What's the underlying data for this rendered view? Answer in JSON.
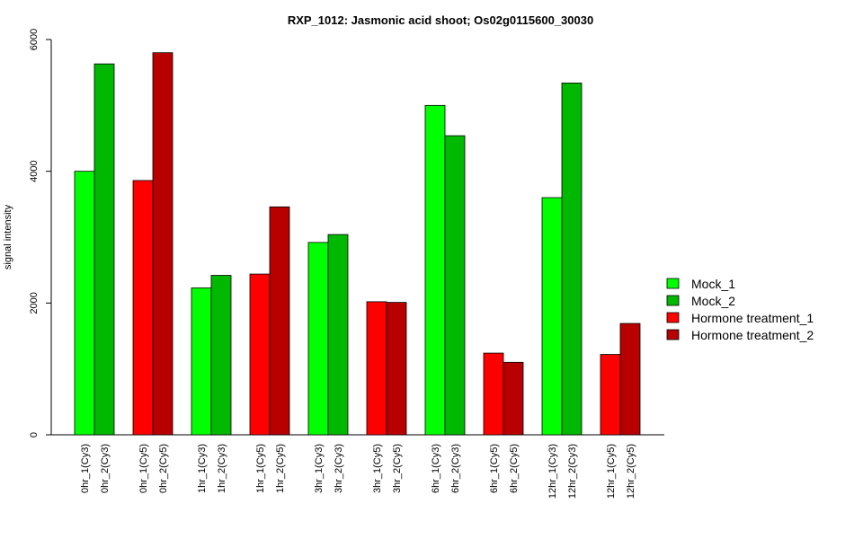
{
  "chart_data": {
    "type": "bar",
    "title": "RXP_1012: Jasmonic acid shoot; Os02g0115600_30030",
    "xlabel": "",
    "ylabel": "signal intensity",
    "ylim": [
      0,
      6000
    ],
    "yticks": [
      0,
      2000,
      4000,
      6000
    ],
    "legend_position": "right",
    "legend": [
      {
        "name": "Mock_1",
        "color": "#00FF00"
      },
      {
        "name": "Mock_2",
        "color": "#00B800"
      },
      {
        "name": "Hormone treatment_1",
        "color": "#FF0000"
      },
      {
        "name": "Hormone treatment_2",
        "color": "#B80000"
      }
    ],
    "groups": [
      {
        "bars": [
          {
            "label": "0hr_1(Cy3)",
            "value": 4000,
            "series": 0
          },
          {
            "label": "0hr_2(Cy3)",
            "value": 5630,
            "series": 1
          }
        ]
      },
      {
        "bars": [
          {
            "label": "0hr_1(Cy5)",
            "value": 3860,
            "series": 2
          },
          {
            "label": "0hr_2(Cy5)",
            "value": 5800,
            "series": 3
          }
        ]
      },
      {
        "bars": [
          {
            "label": "1hr_1(Cy3)",
            "value": 2230,
            "series": 0
          },
          {
            "label": "1hr_2(Cy3)",
            "value": 2420,
            "series": 1
          }
        ]
      },
      {
        "bars": [
          {
            "label": "1hr_1(Cy5)",
            "value": 2440,
            "series": 2
          },
          {
            "label": "1hr_2(Cy5)",
            "value": 3460,
            "series": 3
          }
        ]
      },
      {
        "bars": [
          {
            "label": "3hr_1(Cy3)",
            "value": 2920,
            "series": 0
          },
          {
            "label": "3hr_2(Cy3)",
            "value": 3040,
            "series": 1
          }
        ]
      },
      {
        "bars": [
          {
            "label": "3hr_1(Cy5)",
            "value": 2020,
            "series": 2
          },
          {
            "label": "3hr_2(Cy5)",
            "value": 2010,
            "series": 3
          }
        ]
      },
      {
        "bars": [
          {
            "label": "6hr_1(Cy3)",
            "value": 5000,
            "series": 0
          },
          {
            "label": "6hr_2(Cy3)",
            "value": 4540,
            "series": 1
          }
        ]
      },
      {
        "bars": [
          {
            "label": "6hr_1(Cy5)",
            "value": 1240,
            "series": 2
          },
          {
            "label": "6hr_2(Cy5)",
            "value": 1100,
            "series": 3
          }
        ]
      },
      {
        "bars": [
          {
            "label": "12hr_1(Cy3)",
            "value": 3600,
            "series": 0
          },
          {
            "label": "12hr_2(Cy3)",
            "value": 5340,
            "series": 1
          }
        ]
      },
      {
        "bars": [
          {
            "label": "12hr_1(Cy5)",
            "value": 1220,
            "series": 2
          },
          {
            "label": "12hr_2(Cy5)",
            "value": 1690,
            "series": 3
          }
        ]
      }
    ]
  }
}
